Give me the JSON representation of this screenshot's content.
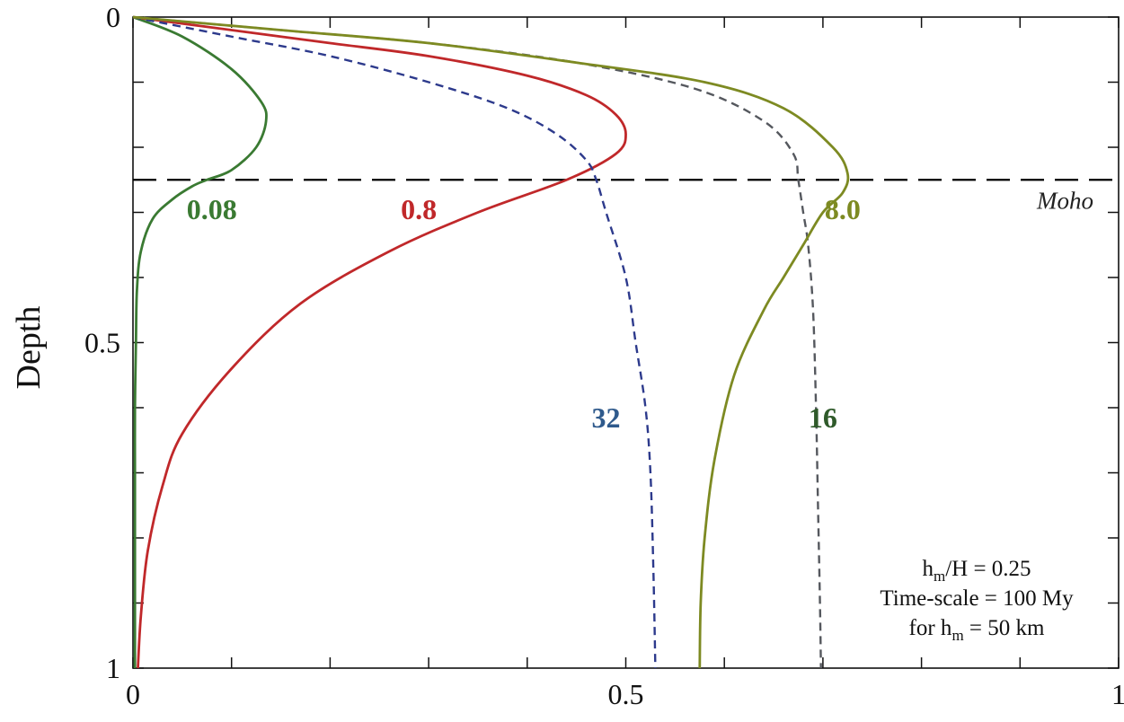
{
  "chart_data": {
    "type": "line",
    "title": "",
    "xlabel": "",
    "ylabel": "Depth",
    "xlim": [
      0,
      1
    ],
    "ylim": [
      1,
      0
    ],
    "y_axis_inverted": true,
    "x_ticks": [
      {
        "value": 0,
        "label": "0"
      },
      {
        "value": 0.5,
        "label": "0.5"
      },
      {
        "value": 1,
        "label": "1"
      }
    ],
    "y_ticks": [
      {
        "value": 0,
        "label": "0"
      },
      {
        "value": 0.5,
        "label": "0.5"
      },
      {
        "value": 1,
        "label": "1"
      }
    ],
    "x_minor_ticks": [
      0.1,
      0.2,
      0.3,
      0.4,
      0.6,
      0.7,
      0.8,
      0.9
    ],
    "y_minor_ticks": [
      0.1,
      0.2,
      0.3,
      0.4,
      0.6,
      0.7,
      0.8,
      0.9
    ],
    "grid": false,
    "reference_lines": [
      {
        "axis": "y",
        "value": 0.25,
        "style": "dashed",
        "color": "#000000",
        "label": "Moho"
      }
    ],
    "series": [
      {
        "name": "0.08",
        "color": "#3a7a32",
        "dash": "solid",
        "label_at": [
          0.08,
          0.31
        ],
        "x": [
          0.0,
          0.05,
          0.1,
          0.13,
          0.135,
          0.125,
          0.1,
          0.075,
          0.06,
          0.04,
          0.02,
          0.008,
          0.004,
          0.003,
          0.002,
          0.002,
          0.002,
          0.002,
          0.002
        ],
        "y": [
          0.0,
          0.03,
          0.08,
          0.13,
          0.16,
          0.2,
          0.235,
          0.25,
          0.26,
          0.28,
          0.31,
          0.36,
          0.42,
          0.5,
          0.6,
          0.7,
          0.8,
          0.9,
          1.0
        ]
      },
      {
        "name": "0.8",
        "color": "#c0282a",
        "dash": "solid",
        "label_at": [
          0.29,
          0.31
        ],
        "x": [
          0.0,
          0.1,
          0.2,
          0.3,
          0.4,
          0.46,
          0.49,
          0.5,
          0.49,
          0.44,
          0.35,
          0.26,
          0.17,
          0.1,
          0.05,
          0.03,
          0.015,
          0.008,
          0.005
        ],
        "y": [
          0.0,
          0.02,
          0.04,
          0.06,
          0.09,
          0.12,
          0.15,
          0.18,
          0.21,
          0.25,
          0.3,
          0.36,
          0.44,
          0.54,
          0.64,
          0.72,
          0.82,
          0.92,
          1.0
        ]
      },
      {
        "name": "32",
        "color": "#2d3a8c",
        "dash": "dashed",
        "label_at": [
          0.48,
          0.63
        ],
        "x": [
          0.0,
          0.1,
          0.2,
          0.3,
          0.38,
          0.43,
          0.46,
          0.47,
          0.48,
          0.5,
          0.51,
          0.52,
          0.525,
          0.528,
          0.53
        ],
        "y": [
          0.0,
          0.03,
          0.06,
          0.1,
          0.14,
          0.18,
          0.22,
          0.25,
          0.3,
          0.4,
          0.5,
          0.6,
          0.7,
          0.85,
          1.0
        ]
      },
      {
        "name": "16",
        "color": "#55585e",
        "dash": "dashed",
        "label_at": [
          0.7,
          0.63
        ],
        "x": [
          0.0,
          0.15,
          0.3,
          0.45,
          0.57,
          0.64,
          0.67,
          0.675,
          0.68,
          0.685,
          0.69,
          0.693,
          0.695,
          0.697,
          0.698
        ],
        "y": [
          0.0,
          0.02,
          0.04,
          0.07,
          0.11,
          0.16,
          0.21,
          0.25,
          0.3,
          0.35,
          0.45,
          0.6,
          0.75,
          0.9,
          1.0
        ]
      },
      {
        "name": "8.0",
        "color": "#7d8a22",
        "dash": "solid",
        "label_at": [
          0.72,
          0.31
        ],
        "x": [
          0.0,
          0.15,
          0.3,
          0.45,
          0.58,
          0.66,
          0.71,
          0.725,
          0.72,
          0.7,
          0.68,
          0.66,
          0.64,
          0.61,
          0.59,
          0.58,
          0.576,
          0.575
        ],
        "y": [
          0.0,
          0.02,
          0.04,
          0.07,
          0.1,
          0.14,
          0.2,
          0.24,
          0.27,
          0.3,
          0.35,
          0.4,
          0.45,
          0.55,
          0.68,
          0.8,
          0.9,
          1.0
        ]
      }
    ],
    "annotation_lines": [
      {
        "main": "h",
        "sub": "m",
        "rest": "/H = 0.25"
      },
      {
        "main": "Time-scale = 100 My",
        "sub": "",
        "rest": ""
      },
      {
        "main": "for h",
        "sub": "m",
        "rest": " = 50 km"
      }
    ]
  }
}
